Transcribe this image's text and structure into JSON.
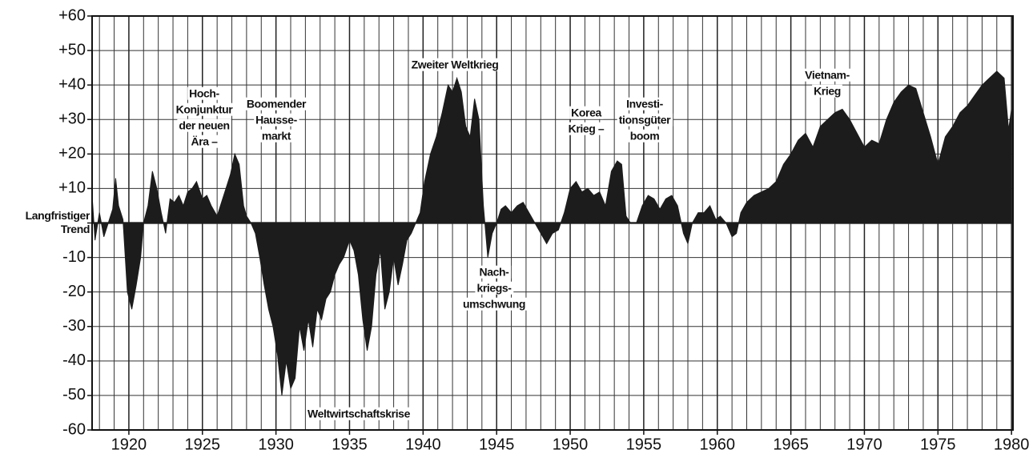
{
  "chart_data": {
    "type": "area",
    "x": [
      1917.5,
      1917.7,
      1918.0,
      1918.3,
      1918.6,
      1918.9,
      1919.1,
      1919.3,
      1919.6,
      1919.9,
      1920.2,
      1920.5,
      1920.8,
      1921.0,
      1921.3,
      1921.6,
      1921.9,
      1922.2,
      1922.5,
      1922.8,
      1923.1,
      1923.4,
      1923.7,
      1924.0,
      1924.3,
      1924.6,
      1925.0,
      1925.3,
      1925.6,
      1926.0,
      1926.3,
      1926.6,
      1926.9,
      1927.2,
      1927.5,
      1927.8,
      1928.0,
      1928.3,
      1928.6,
      1928.9,
      1929.2,
      1929.5,
      1929.8,
      1930.1,
      1930.4,
      1930.7,
      1931.0,
      1931.3,
      1931.6,
      1931.9,
      1932.2,
      1932.5,
      1932.8,
      1933.1,
      1933.4,
      1933.7,
      1934.0,
      1934.3,
      1934.6,
      1935.0,
      1935.3,
      1935.6,
      1935.9,
      1936.2,
      1936.5,
      1936.8,
      1937.1,
      1937.4,
      1937.7,
      1938.0,
      1938.3,
      1938.6,
      1938.9,
      1939.2,
      1939.5,
      1939.8,
      1940.1,
      1940.5,
      1940.9,
      1941.3,
      1941.7,
      1942.0,
      1942.3,
      1942.6,
      1942.9,
      1943.2,
      1943.5,
      1943.8,
      1944.1,
      1944.4,
      1944.7,
      1945.0,
      1945.3,
      1945.6,
      1946.0,
      1946.4,
      1946.8,
      1947.2,
      1947.6,
      1948.0,
      1948.4,
      1948.8,
      1949.2,
      1949.6,
      1950.0,
      1950.4,
      1950.8,
      1951.2,
      1951.6,
      1952.0,
      1952.4,
      1952.8,
      1953.2,
      1953.5,
      1953.8,
      1954.1,
      1954.5,
      1954.9,
      1955.3,
      1955.7,
      1956.1,
      1956.5,
      1956.9,
      1957.3,
      1957.7,
      1958.0,
      1958.3,
      1958.7,
      1959.1,
      1959.5,
      1959.9,
      1960.2,
      1960.6,
      1961.0,
      1961.3,
      1961.6,
      1962.0,
      1962.5,
      1963.0,
      1963.5,
      1964.0,
      1964.5,
      1965.0,
      1965.5,
      1966.0,
      1966.5,
      1967.0,
      1967.5,
      1968.0,
      1968.5,
      1969.0,
      1969.5,
      1970.0,
      1970.5,
      1971.0,
      1971.5,
      1972.0,
      1972.5,
      1973.0,
      1973.5,
      1974.0,
      1974.5,
      1975.0,
      1975.5,
      1976.0,
      1976.5,
      1977.0,
      1977.5,
      1978.0,
      1978.5,
      1979.0,
      1979.5,
      1979.8,
      1980.0
    ],
    "values": [
      8,
      -5,
      3,
      -4,
      0,
      4,
      13,
      5,
      1,
      -20,
      -25,
      -18,
      -10,
      0,
      5,
      15,
      10,
      3,
      -3,
      7,
      6,
      8,
      5,
      9,
      10,
      12,
      7,
      8,
      5,
      2,
      6,
      10,
      14,
      20,
      17,
      5,
      2,
      0,
      -3,
      -10,
      -18,
      -25,
      -30,
      -38,
      -50,
      -40,
      -48,
      -45,
      -30,
      -37,
      -28,
      -36,
      -25,
      -28,
      -22,
      -20,
      -15,
      -12,
      -10,
      -5,
      -8,
      -15,
      -28,
      -37,
      -30,
      -15,
      -8,
      -25,
      -20,
      -10,
      -18,
      -12,
      -5,
      -3,
      0,
      3,
      12,
      20,
      25,
      32,
      40,
      38,
      42,
      38,
      28,
      25,
      36,
      30,
      5,
      -10,
      -3,
      0,
      4,
      5,
      3,
      5,
      6,
      3,
      0,
      -3,
      -6,
      -3,
      -2,
      3,
      10,
      12,
      9,
      10,
      8,
      9,
      5,
      15,
      18,
      17,
      2,
      0,
      0,
      5,
      8,
      7,
      4,
      7,
      8,
      5,
      -3,
      -6,
      0,
      3,
      3,
      5,
      1,
      2,
      0,
      -4,
      -3,
      3,
      6,
      8,
      9,
      10,
      12,
      17,
      20,
      24,
      26,
      22,
      28,
      30,
      32,
      33,
      30,
      26,
      22,
      24,
      23,
      30,
      35,
      38,
      40,
      39,
      32,
      25,
      17,
      25,
      28,
      32,
      34,
      37,
      40,
      42,
      44,
      42,
      27,
      33
    ],
    "color": "#1c1c1c",
    "xlim": [
      1917.5,
      1980.1
    ],
    "xticks": [
      1920,
      1925,
      1930,
      1935,
      1940,
      1945,
      1950,
      1955,
      1960,
      1965,
      1970,
      1975,
      1980
    ],
    "xgrid": [
      1918,
      1919,
      1920,
      1921,
      1922,
      1923,
      1924,
      1925,
      1926,
      1927,
      1928,
      1929,
      1930,
      1931,
      1932,
      1933,
      1934,
      1935,
      1936,
      1937,
      1938,
      1939,
      1940,
      1941,
      1942,
      1943,
      1944,
      1945,
      1946,
      1947,
      1948,
      1949,
      1950,
      1951,
      1952,
      1953,
      1954,
      1955,
      1956,
      1957,
      1958,
      1959,
      1960,
      1961,
      1962,
      1963,
      1964,
      1965,
      1966,
      1967,
      1968,
      1969,
      1970,
      1971,
      1972,
      1973,
      1974,
      1975,
      1976,
      1977,
      1978,
      1979
    ],
    "ylim": [
      -60,
      60
    ],
    "yticks": [
      {
        "value": 60,
        "label": "+60"
      },
      {
        "value": 50,
        "label": "+50"
      },
      {
        "value": 40,
        "label": "+40"
      },
      {
        "value": 30,
        "label": "+30"
      },
      {
        "value": 20,
        "label": "+20"
      },
      {
        "value": 10,
        "label": "+10"
      },
      {
        "value": 0,
        "label": "Langfristiger Trend"
      },
      -10,
      -20,
      -30,
      -40,
      -50,
      -60
    ],
    "grid": true,
    "annotations": [
      {
        "lines": [
          "Hoch-",
          "Konjunktur",
          "der neuen",
          "Ära –"
        ]
      },
      {
        "lines": [
          "Boomender",
          "Hausse-",
          "markt"
        ]
      },
      {
        "lines": [
          "Weltwirtschaftskrise"
        ]
      },
      {
        "lines": [
          "Zweiter Weltkrieg"
        ]
      },
      {
        "lines": [
          "Nach-",
          "kriegs-",
          "umschwung"
        ]
      },
      {
        "lines": [
          "Korea",
          "Krieg –"
        ]
      },
      {
        "lines": [
          "Investi-",
          "tionsgüter",
          "boom"
        ]
      },
      {
        "lines": [
          "Vietnam-",
          "Krieg"
        ]
      }
    ]
  }
}
